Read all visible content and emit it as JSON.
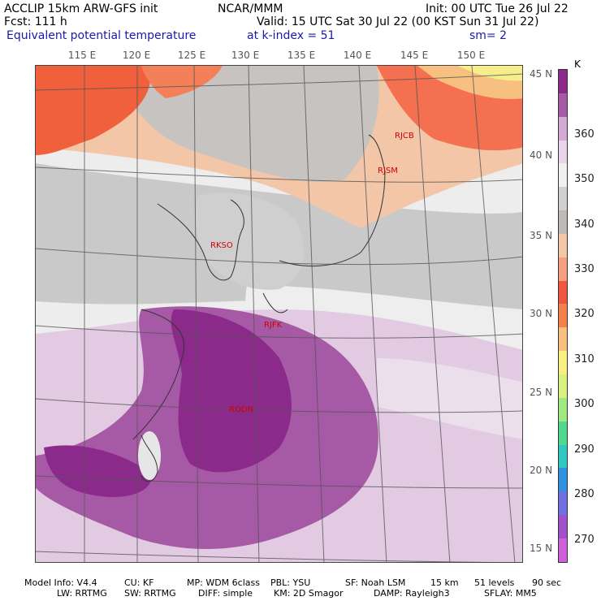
{
  "header": {
    "line1_left": "ACCLIP 15km ARW-GFS init",
    "line1_center": "NCAR/MMM",
    "line1_right": "Init: 00 UTC Tue 26 Jul 22",
    "line2_left": "Fcst:  111 h",
    "line2_right": "Valid: 15 UTC Sat 30 Jul 22 (00 KST Sun 31 Jul 22)",
    "line3_field": "Equivalent potential temperature",
    "line3_kindex": "at k-index =  51",
    "line3_smooth": "sm= 2"
  },
  "map": {
    "lon_labels": [
      "115 E",
      "120 E",
      "125 E",
      "130 E",
      "135 E",
      "140 E",
      "145 E",
      "150 E"
    ],
    "lat_labels": [
      "45 N",
      "40 N",
      "35 N",
      "30 N",
      "25 N",
      "20 N",
      "15 N"
    ],
    "stations": [
      "RJCB",
      "RJSM",
      "RKSO",
      "RJFK",
      "RODN"
    ]
  },
  "colorbar": {
    "unit": "K",
    "labels": [
      "360",
      "350",
      "340",
      "330",
      "320",
      "310",
      "300",
      "290",
      "280",
      "270"
    ],
    "colors": [
      "#8c2a8c",
      "#a65aa6",
      "#d4aad4",
      "#e8d4e8",
      "#f0f0f0",
      "#d0d0d0",
      "#bdb9b6",
      "#f2c8a8",
      "#f4a080",
      "#f05540",
      "#f4804a",
      "#f8c080",
      "#f8f080",
      "#d8f080",
      "#a0e880",
      "#50d890",
      "#30c8c0",
      "#3090e0",
      "#7070e0",
      "#a050c8",
      "#d060d8"
    ]
  },
  "footer": {
    "line1": [
      "Model Info: V4.4",
      "CU: KF",
      "MP: WDM 6class",
      "PBL: YSU",
      "SF: Noah LSM",
      "15 km",
      "51 levels",
      "90 sec"
    ],
    "line2": [
      "LW: RRTMG",
      "SW: RRTMG",
      "DIFF: simple",
      "KM: 2D Smagor",
      "DAMP: Rayleigh3",
      "SFLAY: MM5"
    ]
  }
}
